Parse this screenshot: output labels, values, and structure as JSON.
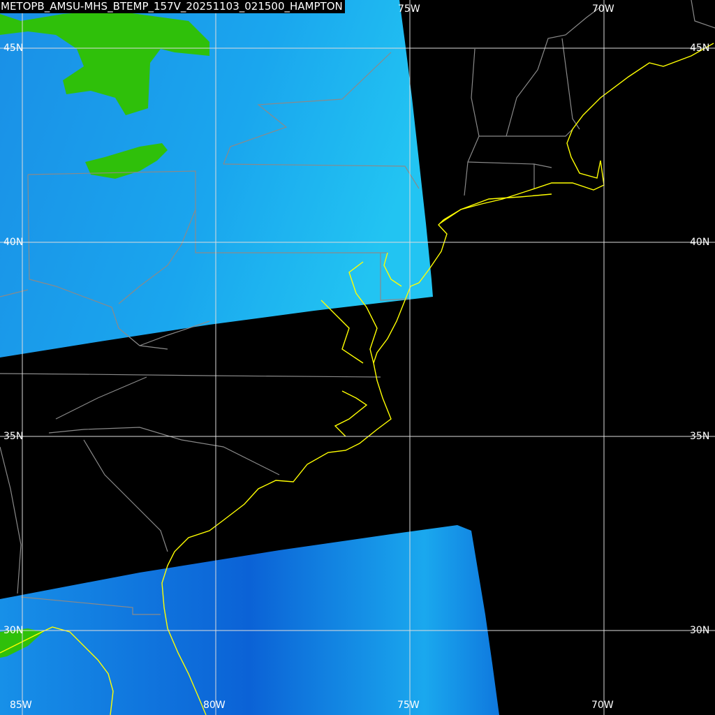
{
  "title": "METOPB_AMSU-MHS_BTEMP_157V_20251103_021500_HAMPTON",
  "colors": {
    "background": "#000000",
    "swath_cold": "#0a5fd8",
    "swath_mid": "#1a9ee8",
    "swath_warm": "#21c8f0",
    "precip_green": "#2fc00a",
    "coastline": "#ffff00",
    "borders": "#8a8a8a",
    "gridlines": "#ffffff"
  },
  "grid": {
    "longitudes": [
      {
        "value": -85,
        "label": "85W"
      },
      {
        "value": -80,
        "label": "80W"
      },
      {
        "value": -75,
        "label": "75W"
      },
      {
        "value": -70,
        "label": "70W"
      }
    ],
    "latitudes": [
      {
        "value": 45,
        "label": "45N"
      },
      {
        "value": 40,
        "label": "40N"
      },
      {
        "value": 35,
        "label": "35N"
      },
      {
        "value": 30,
        "label": "30N"
      }
    ]
  }
}
